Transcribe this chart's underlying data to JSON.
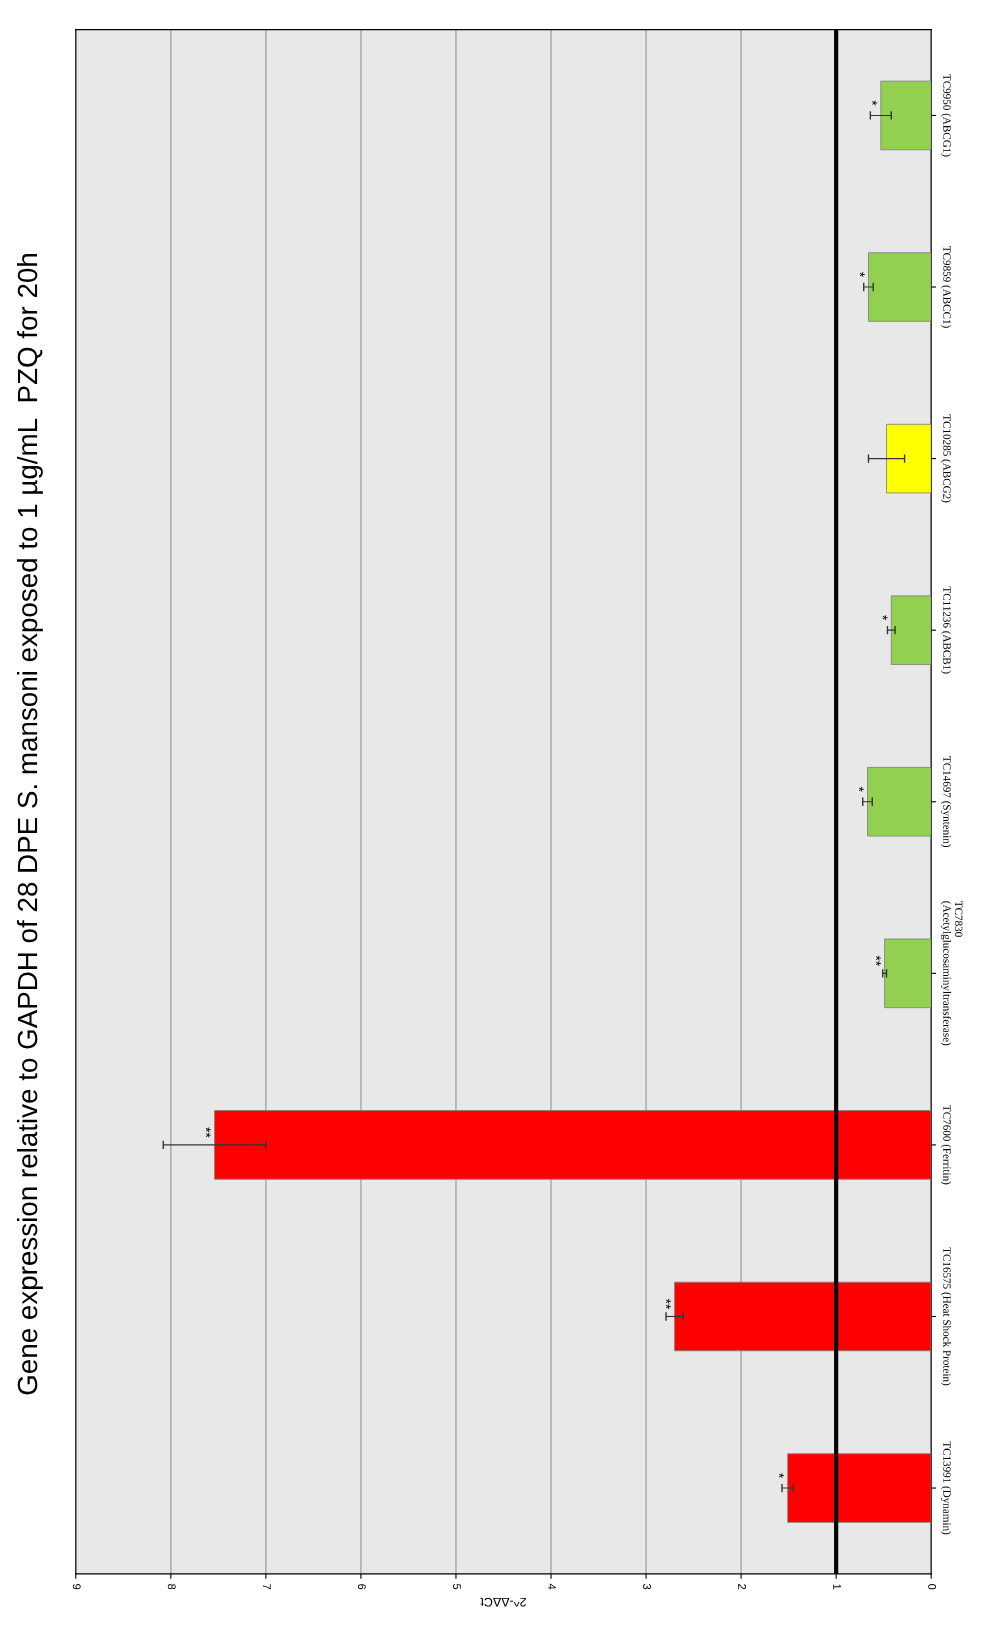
{
  "chart_data": {
    "type": "bar",
    "orientation": "horizontal",
    "title": "Gene expression relative to GAPDH of 28 DPE S. mansoni exposed to 1 µg/mL  PZQ for 20h",
    "xlabel": "2^-ΔΔCt",
    "categories": [
      "TC9950 (ABCG1)",
      "TC9859 (ABCC1)",
      "TC10285 (ABCG2)",
      "TC11236 (ABCB1)",
      "TC14697 (Syntenin)",
      "TC7830\n(Acetylglucosaminyltransferase)",
      "TC7600 (Ferritin)",
      "TC16575 (Heat Shock Protein)",
      "TC13991 (Dynamin)"
    ],
    "values": [
      0.53,
      0.66,
      0.47,
      0.42,
      0.67,
      0.49,
      7.54,
      2.7,
      1.51
    ],
    "errors": [
      0.11,
      0.05,
      0.19,
      0.04,
      0.05,
      0.02,
      0.54,
      0.09,
      0.06
    ],
    "colors": [
      "#92d050",
      "#92d050",
      "#ffff00",
      "#92d050",
      "#92d050",
      "#92d050",
      "#ff0000",
      "#ff0000",
      "#ff0000"
    ],
    "xlim": [
      9,
      0
    ],
    "xticks": [
      0,
      1,
      2,
      3,
      4,
      5,
      6,
      7,
      8,
      9
    ],
    "grid": "x",
    "ref_lines": [
      {
        "axis": "x",
        "value": 1,
        "color": "#000000"
      }
    ],
    "value_labels": [
      "*",
      "*",
      null,
      "*",
      "*",
      "**",
      "**",
      "**",
      "*"
    ]
  }
}
